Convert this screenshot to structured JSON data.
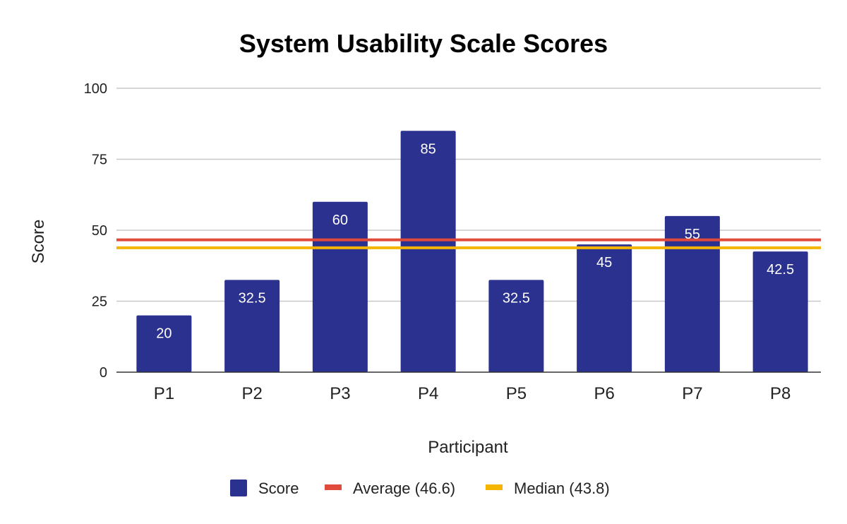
{
  "chart_data": {
    "type": "bar",
    "title": "System Usability Scale Scores",
    "xlabel": "Participant",
    "ylabel": "Score",
    "ylim": [
      0,
      100
    ],
    "yticks": [
      0,
      25,
      50,
      75,
      100
    ],
    "ytick_labels": [
      "0",
      "25",
      "50",
      "75",
      "100"
    ],
    "categories": [
      "P1",
      "P2",
      "P3",
      "P4",
      "P5",
      "P6",
      "P7",
      "P8"
    ],
    "series": [
      {
        "name": "Score",
        "values": [
          20,
          32.5,
          60,
          85,
          32.5,
          45,
          55,
          42.5
        ],
        "labels": [
          "20",
          "32.5",
          "60",
          "85",
          "32.5",
          "45",
          "55",
          "42.5"
        ],
        "color": "#2b318e"
      }
    ],
    "reference_lines": [
      {
        "name": "Average (46.6)",
        "value": 46.6,
        "color": "#e04a3a"
      },
      {
        "name": "Median (43.8)",
        "value": 43.8,
        "color": "#f4b400"
      }
    ],
    "legend": {
      "position": "bottom",
      "entries": [
        "Score",
        "Average (46.6)",
        "Median (43.8)"
      ]
    },
    "grid": true,
    "grid_color": "#c8c8c8"
  }
}
